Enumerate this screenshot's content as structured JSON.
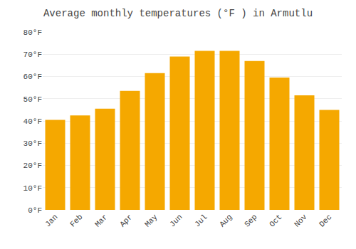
{
  "chart_data": {
    "type": "bar",
    "title": "Average monthly temperatures (°F ) in Armutlu",
    "categories": [
      "Jan",
      "Feb",
      "Mar",
      "Apr",
      "May",
      "Jun",
      "Jul",
      "Aug",
      "Sep",
      "Oct",
      "Nov",
      "Dec"
    ],
    "values": [
      40.5,
      42.5,
      45.5,
      53.5,
      61.5,
      69,
      71.5,
      71.5,
      67,
      59.5,
      51.5,
      45
    ],
    "color": "#F5A800",
    "ylim": [
      0,
      80
    ],
    "yticks": [
      {
        "value": 0,
        "label": "0°F"
      },
      {
        "value": 10,
        "label": "10°F"
      },
      {
        "value": 20,
        "label": "20°F"
      },
      {
        "value": 30,
        "label": "30°F"
      },
      {
        "value": 40,
        "label": "40°F"
      },
      {
        "value": 50,
        "label": "50°F"
      },
      {
        "value": 60,
        "label": "60°F"
      },
      {
        "value": 70,
        "label": "70°F"
      },
      {
        "value": 80,
        "label": "80°F"
      }
    ],
    "grid": true
  }
}
